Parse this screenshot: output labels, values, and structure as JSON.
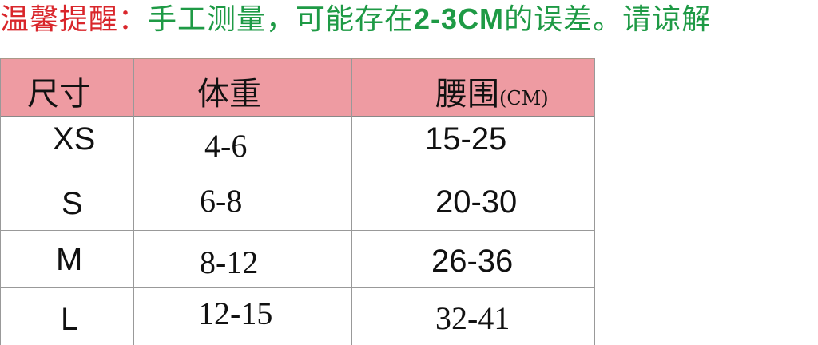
{
  "notice": {
    "lead": "温馨提醒：",
    "text_before": "手工测量，可能存在",
    "range": "2-3CM",
    "text_after": "的误差。请谅解"
  },
  "colors": {
    "header_bg": "#ee9ba2",
    "notice_lead": "#d9262b",
    "notice_body": "#1e9a45"
  },
  "table": {
    "headers": {
      "size": "尺寸",
      "weight": "体重",
      "waist": "腰围",
      "waist_unit": "(CM)"
    },
    "rows": [
      {
        "size": "XS",
        "weight": "4-6",
        "waist": "15-25"
      },
      {
        "size": "S",
        "weight": "6-8",
        "waist": "20-30"
      },
      {
        "size": "M",
        "weight": "8-12",
        "waist": "26-36"
      },
      {
        "size": "L",
        "weight": "12-15",
        "waist": "32-41"
      }
    ]
  }
}
